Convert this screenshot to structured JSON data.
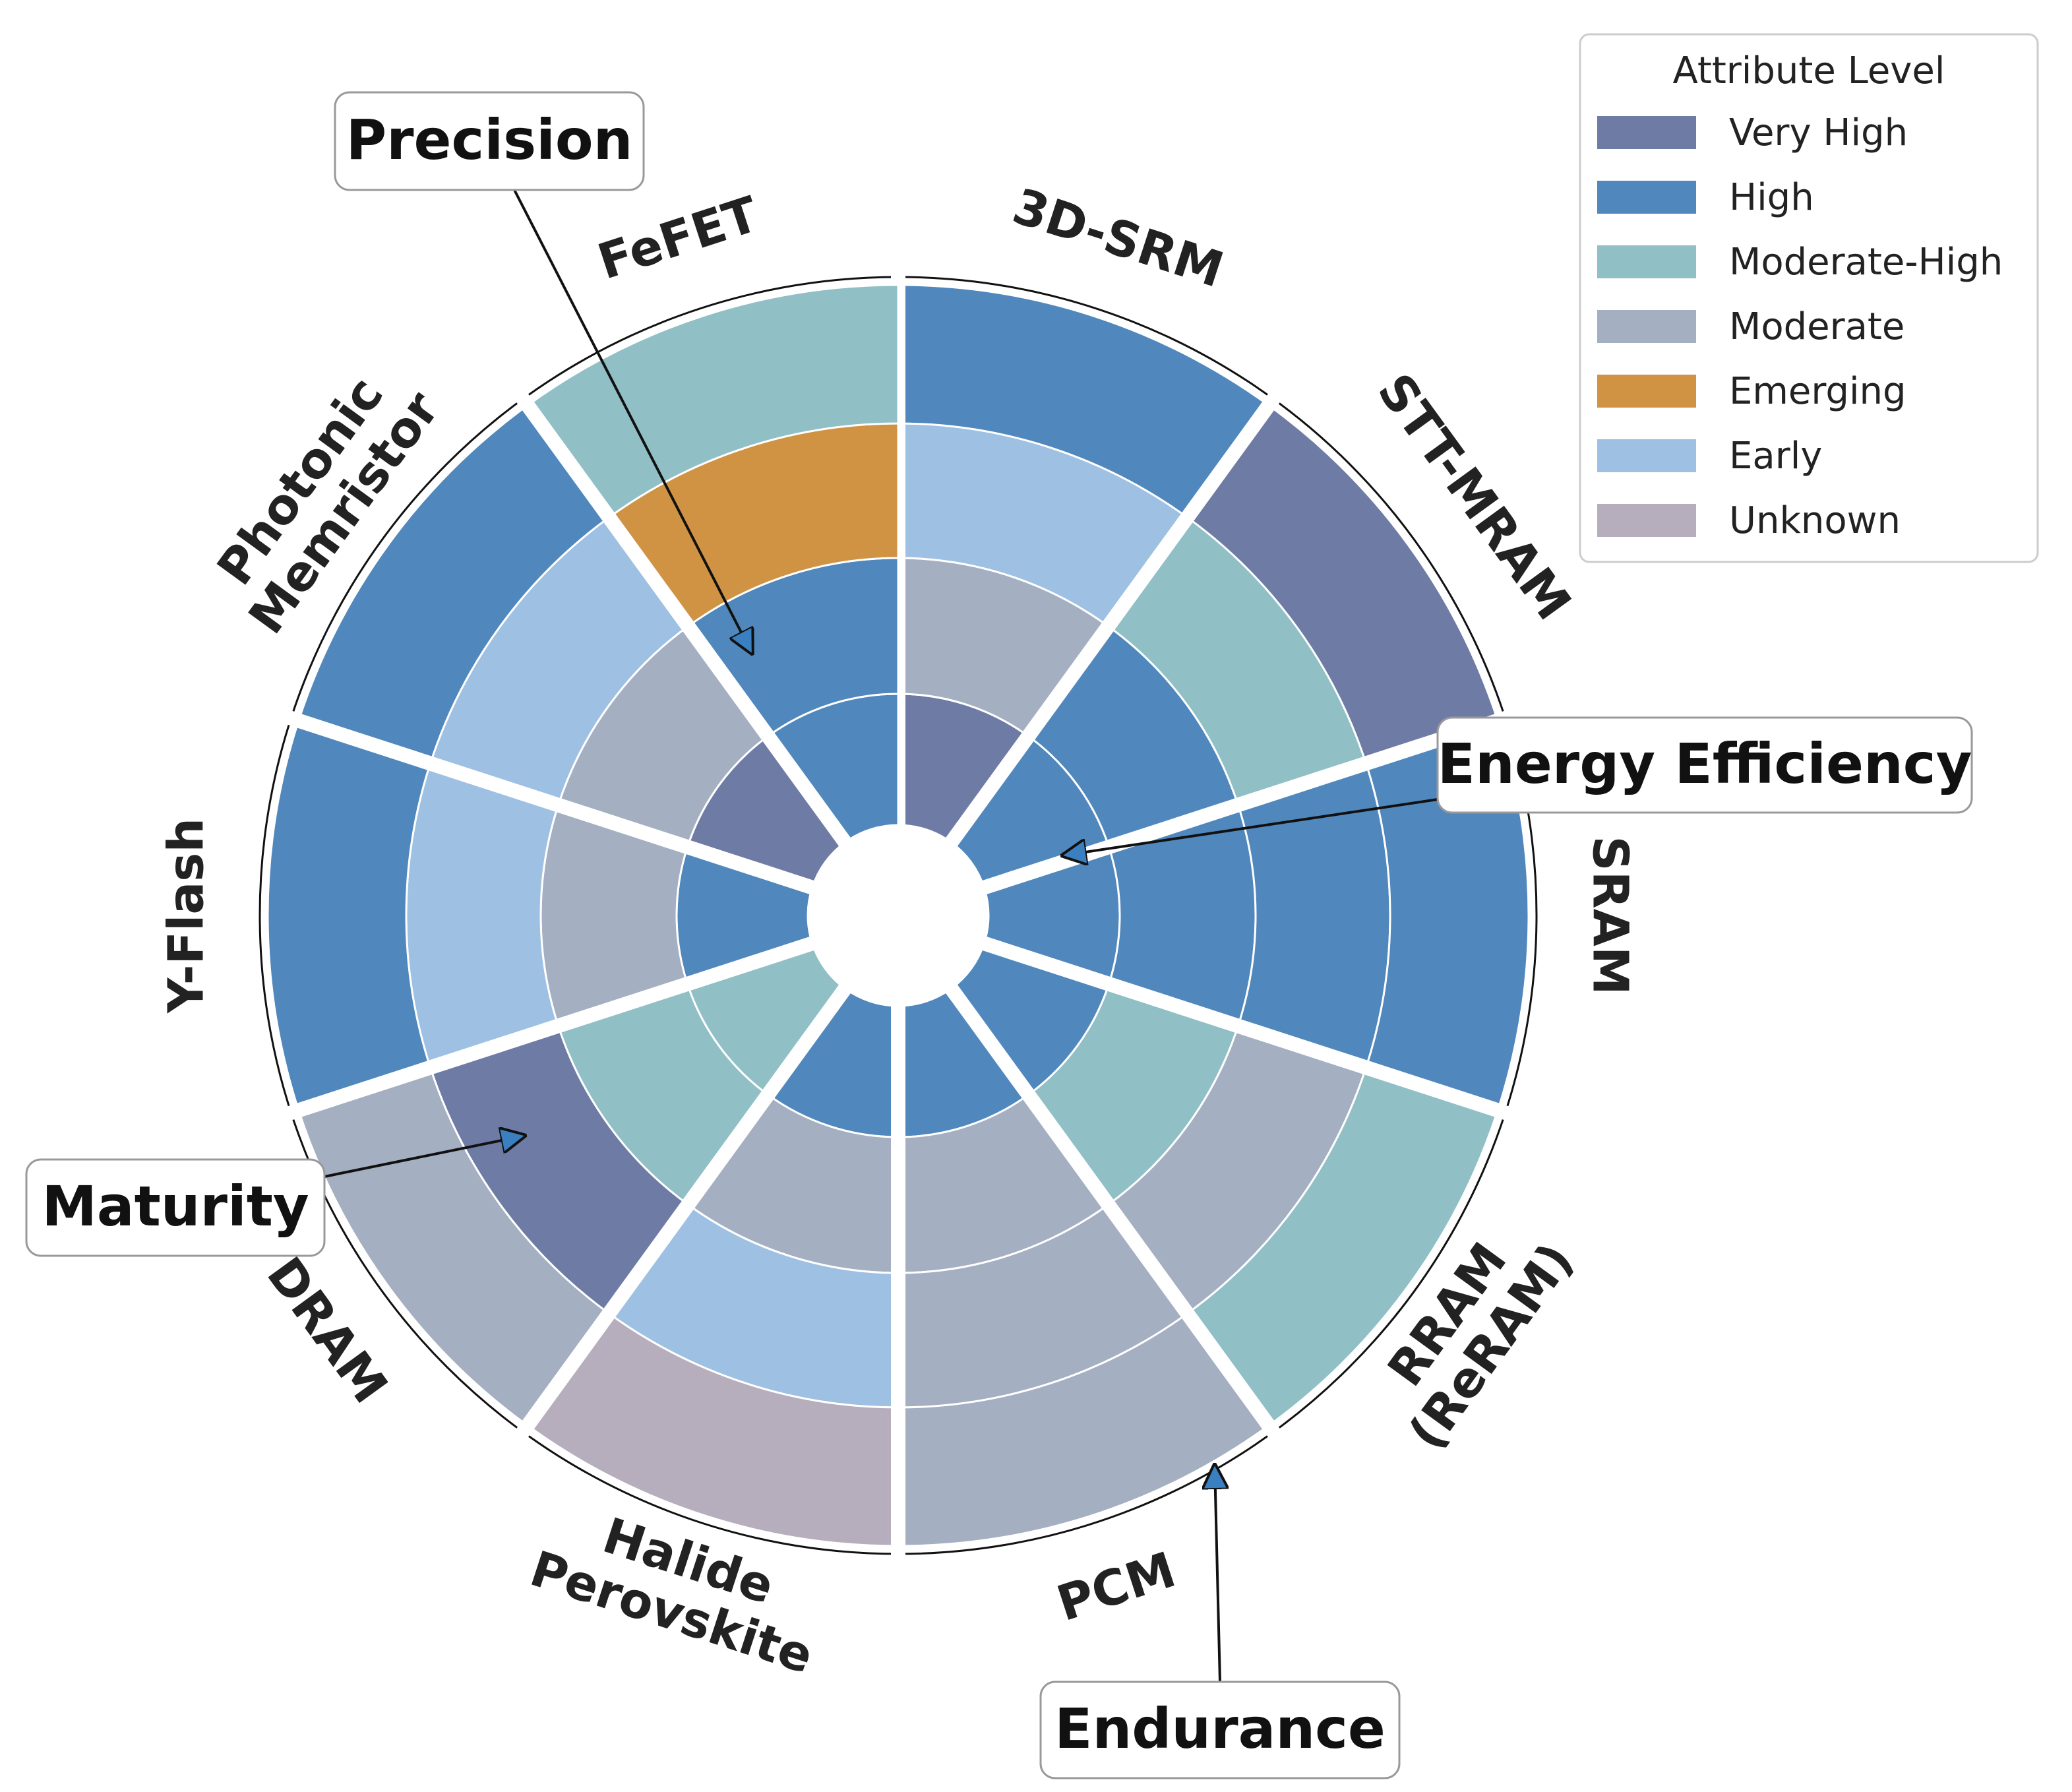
{
  "chart_data": {
    "type": "polar-bar",
    "technologies": [
      "3D-SRM",
      "STT-MRAM",
      "SRAM",
      "RRAM (ReRAM)",
      "PCM",
      "Halide Perovskite",
      "DRAM",
      "Y-Flash",
      "Photonic Memristor",
      "FeFET"
    ],
    "rings": [
      "Energy Efficiency",
      "Precision",
      "Maturity",
      "Endurance"
    ],
    "levels": {
      "3D-SRM": [
        "Very High",
        "Moderate",
        "Early",
        "High"
      ],
      "STT-MRAM": [
        "High",
        "High",
        "Moderate-High",
        "Very High"
      ],
      "SRAM": [
        "High",
        "High",
        "High",
        "High"
      ],
      "RRAM (ReRAM)": [
        "High",
        "Moderate-High",
        "Moderate",
        "Moderate-High"
      ],
      "PCM": [
        "High",
        "Moderate",
        "Moderate",
        "Moderate"
      ],
      "Halide Perovskite": [
        "High",
        "Moderate",
        "Early",
        "Unknown"
      ],
      "DRAM": [
        "Moderate-High",
        "Moderate-High",
        "Very High",
        "Moderate"
      ],
      "Y-Flash": [
        "High",
        "Moderate",
        "Early",
        "High"
      ],
      "Photonic Memristor": [
        "Very High",
        "Moderate",
        "Early",
        "High"
      ],
      "FeFET": [
        "High",
        "High",
        "Emerging",
        "Moderate-High"
      ]
    },
    "legend": {
      "title": "Attribute Level",
      "position": "top-right",
      "entries": [
        {
          "label": "Very High",
          "color": "#6e7ba5"
        },
        {
          "label": "High",
          "color": "#5087bd"
        },
        {
          "label": "Moderate-High",
          "color": "#90bfc6"
        },
        {
          "label": "Moderate",
          "color": "#a5afc2"
        },
        {
          "label": "Emerging",
          "color": "#cf9343"
        },
        {
          "label": "Early",
          "color": "#9ec0e2"
        },
        {
          "label": "Unknown",
          "color": "#b7aebd"
        }
      ]
    },
    "annotations": [
      "Precision",
      "Energy Efficiency",
      "Maturity",
      "Endurance"
    ]
  }
}
